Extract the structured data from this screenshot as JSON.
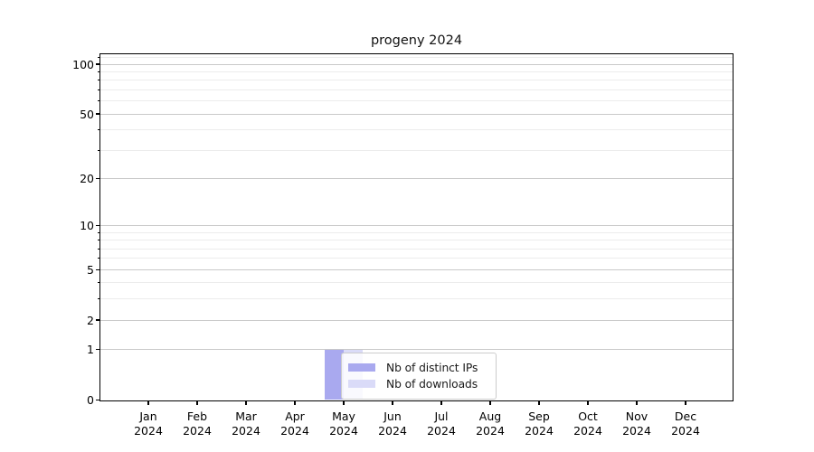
{
  "chart_data": {
    "type": "bar",
    "title": "progeny 2024",
    "categories": [
      "Jan 2024",
      "Feb 2024",
      "Mar 2024",
      "Apr 2024",
      "May 2024",
      "Jun 2024",
      "Jul 2024",
      "Aug 2024",
      "Sep 2024",
      "Oct 2024",
      "Nov 2024",
      "Dec 2024"
    ],
    "series": [
      {
        "name": "Nb of distinct IPs",
        "color": "#a9a9ef",
        "values": [
          0,
          0,
          0,
          0,
          1,
          0,
          0,
          0,
          0,
          0,
          0,
          0
        ]
      },
      {
        "name": "Nb of downloads",
        "color": "#dadbf8",
        "values": [
          0,
          0,
          0,
          0,
          1,
          0,
          0,
          0,
          0,
          0,
          0,
          0
        ]
      }
    ],
    "y_ticks": [
      0,
      1,
      2,
      5,
      10,
      20,
      50,
      100
    ],
    "y_scale": "log10(1+x)",
    "ylim": [
      0,
      116
    ],
    "xlabel": "",
    "ylabel": "",
    "grid": "both-horizontal",
    "legend_position": "lower-center"
  },
  "colors": {
    "grid_major": "#c9c9c9",
    "grid_minor": "#ececec",
    "axis": "#000000",
    "background": "#ffffff"
  }
}
